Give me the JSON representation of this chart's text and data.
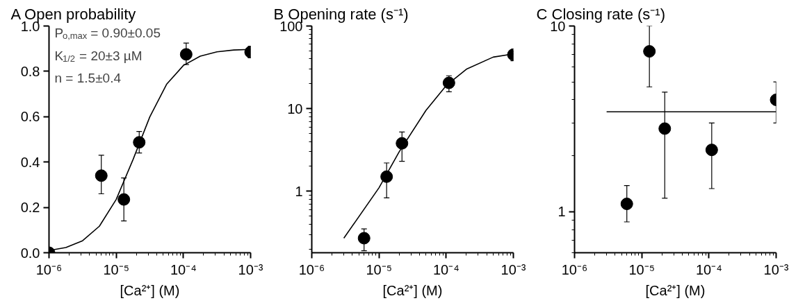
{
  "chart_data": [
    {
      "type": "scatter",
      "title": "A   Open probability",
      "xlabel": "[Ca²⁺] (M)",
      "log": "x",
      "grid": false,
      "marker": "circle",
      "xlim": [
        1e-06,
        0.001
      ],
      "xticks": [
        {
          "value": 1e-06,
          "label": "10⁻⁶"
        },
        {
          "value": 1e-05,
          "label": "10⁻⁵"
        },
        {
          "value": 0.0001,
          "label": "10⁻⁴"
        },
        {
          "value": 0.001,
          "label": "10⁻³"
        }
      ],
      "ylim": [
        0,
        1
      ],
      "yticks": [
        {
          "value": 0,
          "label": "0.0"
        },
        0.2,
        0.4,
        0.6,
        0.8,
        {
          "value": 1,
          "label": "1.0"
        }
      ],
      "annotations": [
        "P$_{o,max}$ = 0.90±0.05",
        "K$_{1/2}$ = 20±3 µM",
        "n = 1.5±0.4"
      ],
      "series": [
        {
          "type": "scatter",
          "color": "#000000",
          "x": [
            1e-06,
            6e-06,
            1.3e-05,
            2.2e-05,
            0.00011,
            0.001
          ],
          "values": [
            0.0,
            0.34,
            0.235,
            0.487,
            0.875,
            0.885
          ],
          "errors": [
            null,
            [
              0.26,
              0.43
            ],
            [
              0.14,
              0.33
            ],
            [
              0.44,
              0.535
            ],
            [
              0.83,
              0.925
            ],
            [
              0.86,
              0.91
            ]
          ]
        },
        {
          "type": "line",
          "color": "#000000",
          "x": [
            1e-06,
            1.78e-06,
            3.16e-06,
            5.62e-06,
            1e-05,
            1.78e-05,
            3.16e-05,
            5.62e-05,
            0.0001,
            0.000178,
            0.000316,
            0.000562,
            0.001
          ],
          "values": [
            0.01,
            0.023,
            0.053,
            0.117,
            0.235,
            0.411,
            0.599,
            0.743,
            0.826,
            0.867,
            0.886,
            0.894,
            0.897
          ],
          "marker": "none"
        }
      ]
    },
    {
      "type": "scatter",
      "title": "B   Opening rate (s⁻¹)",
      "xlabel": "[Ca²⁺] (M)",
      "log": "xy",
      "grid": false,
      "marker": "circle",
      "xlim": [
        1e-06,
        0.001
      ],
      "xticks": [
        {
          "value": 1e-06,
          "label": "10⁻⁶"
        },
        {
          "value": 1e-05,
          "label": "10⁻⁵"
        },
        {
          "value": 0.0001,
          "label": "10⁻⁴"
        },
        {
          "value": 0.001,
          "label": "10⁻³"
        }
      ],
      "ylim": [
        0.18,
        100
      ],
      "yticks": [
        1,
        10,
        100
      ],
      "series": [
        {
          "type": "scatter",
          "color": "#000000",
          "x": [
            6e-06,
            1.3e-05,
            2.2e-05,
            0.00011,
            0.001
          ],
          "values": [
            0.27,
            1.5,
            3.8,
            20.5,
            45
          ],
          "errors": [
            [
              0.19,
              0.35
            ],
            [
              0.83,
              2.2
            ],
            [
              2.3,
              5.2
            ],
            [
              16,
              25
            ],
            [
              38,
              50
            ]
          ]
        },
        {
          "type": "line",
          "color": "#000000",
          "x": [
            3e-06,
            1e-05,
            2e-05,
            5e-05,
            0.0001,
            0.0002,
            0.0005,
            0.001
          ],
          "values": [
            0.27,
            1.1,
            3.0,
            9.5,
            19,
            30,
            42,
            46
          ],
          "marker": "none"
        }
      ]
    },
    {
      "type": "scatter",
      "title": "C   Closing rate (s⁻¹)",
      "xlabel": "[Ca²⁺] (M)",
      "log": "xy",
      "grid": false,
      "marker": "circle",
      "xlim": [
        1e-06,
        0.001
      ],
      "xticks": [
        {
          "value": 1e-06,
          "label": "10⁻⁶"
        },
        {
          "value": 1e-05,
          "label": "10⁻⁵"
        },
        {
          "value": 0.0001,
          "label": "10⁻⁴"
        },
        {
          "value": 0.001,
          "label": "10⁻³"
        }
      ],
      "ylim": [
        0.6,
        10
      ],
      "yticks": [
        1,
        10
      ],
      "series": [
        {
          "type": "scatter",
          "color": "#000000",
          "x": [
            6e-06,
            1.3e-05,
            2.2e-05,
            0.00011,
            0.001
          ],
          "values": [
            1.1,
            7.3,
            2.8,
            2.15,
            4.0
          ],
          "errors": [
            [
              0.88,
              1.38
            ],
            [
              4.7,
              10
            ],
            [
              1.18,
              4.4
            ],
            [
              1.33,
              3.0
            ],
            [
              3.0,
              5.0
            ]
          ]
        },
        {
          "type": "line",
          "color": "#000000",
          "x": [
            3e-06,
            0.001
          ],
          "values": [
            3.45,
            3.45
          ],
          "marker": "none"
        }
      ]
    }
  ]
}
